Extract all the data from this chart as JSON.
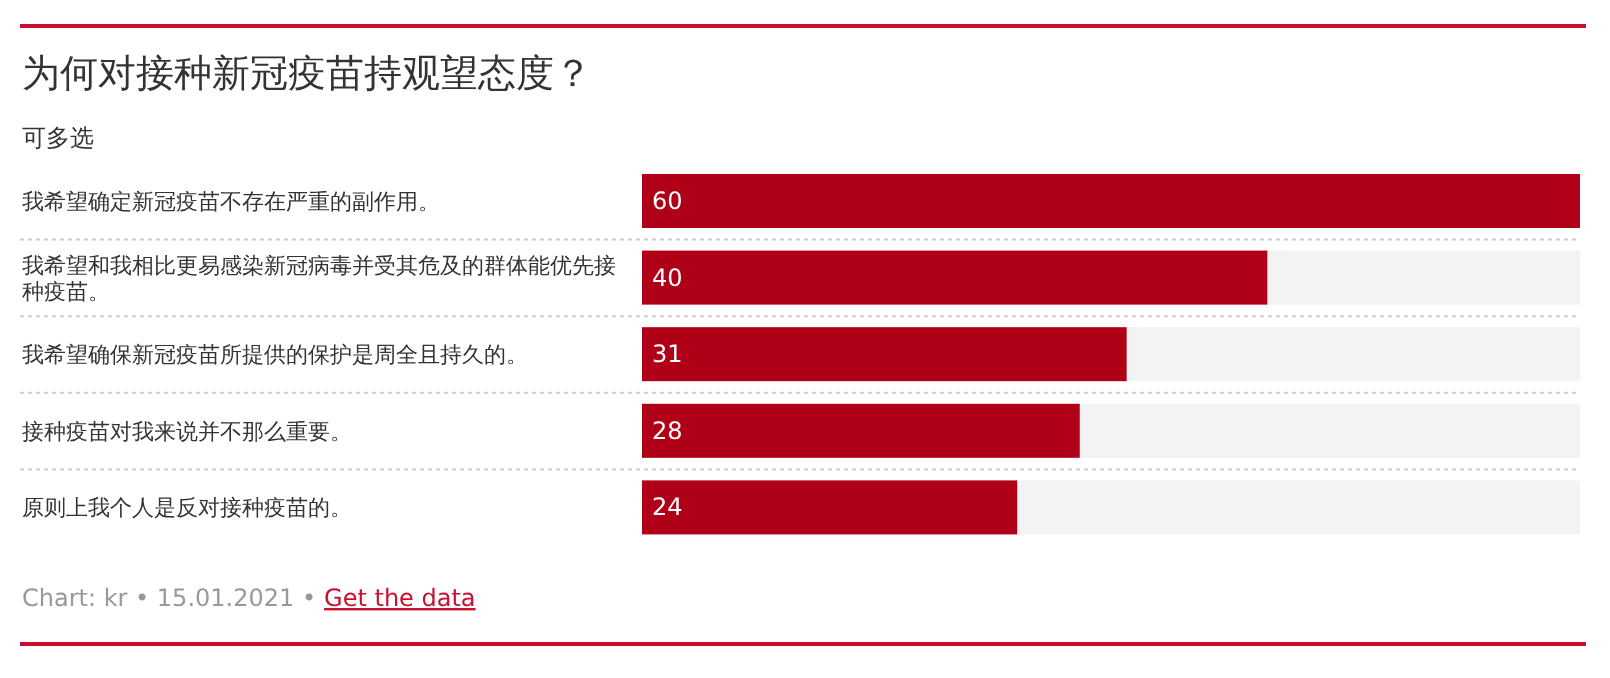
{
  "chart_data": {
    "type": "bar",
    "orientation": "horizontal",
    "title": "为何对接种新冠疫苗持观望态度？",
    "subtitle": "可多选",
    "categories": [
      "我希望确定新冠疫苗不存在严重的副作用。",
      "我希望和我相比更易感染新冠病毒并受其危及的群体能优先接种疫苗。",
      "我希望确保新冠疫苗所提供的保护是周全且持久的。",
      "接种疫苗对我来说并不那么重要。",
      "原则上我个人是反对接种疫苗的。"
    ],
    "values": [
      60,
      40,
      31,
      28,
      24
    ],
    "color": "#b00018",
    "xlim": [
      0,
      60
    ],
    "data_labels": true,
    "tick_labels": "y",
    "annotations": [
      "Chart: kr • 15.01.2021 •",
      "Get the data"
    ]
  }
}
